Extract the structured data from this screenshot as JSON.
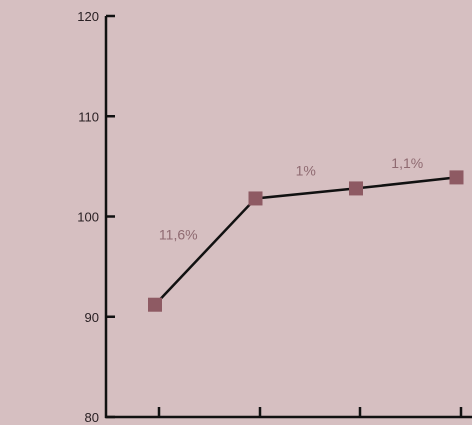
{
  "colors": {
    "background": "#d6bfc1",
    "axis": "#111111",
    "line": "#111111",
    "marker": "#8e5a63",
    "annotation": "#8f6a71",
    "tick_text": "#2a2024"
  },
  "chart_data": {
    "type": "line",
    "title": "",
    "xlabel": "",
    "ylabel": "",
    "ylim": [
      80,
      120
    ],
    "yticks": [
      80,
      90,
      100,
      110,
      120
    ],
    "x": [
      1,
      2,
      3,
      4
    ],
    "series": [
      {
        "values": [
          91.2,
          101.8,
          102.8,
          103.9
        ],
        "marker": "square"
      }
    ],
    "annotations": [
      {
        "text": "11,6%",
        "between": [
          0,
          1
        ]
      },
      {
        "text": "1%",
        "between": [
          1,
          2
        ]
      },
      {
        "text": "1,1%",
        "between": [
          2,
          3
        ]
      }
    ],
    "grid": false
  }
}
